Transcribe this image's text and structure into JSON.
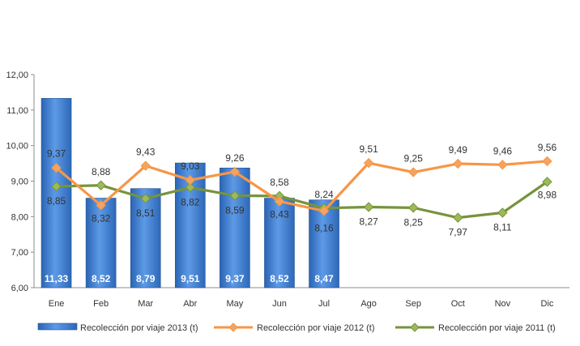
{
  "chart_data": {
    "type": "bar",
    "categories": [
      "Ene",
      "Feb",
      "Mar",
      "Abr",
      "May",
      "Jun",
      "Jul",
      "Ago",
      "Sep",
      "Oct",
      "Nov",
      "Dic"
    ],
    "ylim": [
      6,
      12
    ],
    "yticks": [
      "6,00",
      "7,00",
      "8,00",
      "9,00",
      "10,00",
      "11,00",
      "12,00"
    ],
    "grid": false,
    "legend_position": "bottom",
    "series": [
      {
        "name": "Recolección por viaje 2013 (t)",
        "type": "bar",
        "color": "#3a7dd1",
        "values": [
          11.33,
          8.52,
          8.79,
          9.51,
          9.37,
          8.52,
          8.47,
          null,
          null,
          null,
          null,
          null
        ],
        "labels": [
          "11,33",
          "8,52",
          "8,79",
          "9,51",
          "9,37",
          "8,52",
          "8,47",
          "",
          "",
          "",
          "",
          ""
        ]
      },
      {
        "name": "Recolección por viaje 2012 (t)",
        "type": "line",
        "color": "#f79646",
        "marker_color": "#f4a460",
        "values": [
          9.37,
          8.32,
          9.43,
          9.03,
          9.26,
          8.43,
          8.16,
          9.51,
          9.25,
          9.49,
          9.46,
          9.56
        ],
        "labels": [
          "9,37",
          "8,32",
          "9,43",
          "9,03",
          "9,26",
          "8,43",
          "8,16",
          "9,51",
          "9,25",
          "9,49",
          "9,46",
          "9,56"
        ]
      },
      {
        "name": "Recolección por viaje 2011 (t)",
        "type": "line",
        "color": "#77933c",
        "marker_color": "#9bbb59",
        "values": [
          8.85,
          8.88,
          8.51,
          8.82,
          8.59,
          8.58,
          8.24,
          8.27,
          8.25,
          7.97,
          8.11,
          8.98
        ],
        "labels": [
          "8,85",
          "8,88",
          "8,51",
          "8,82",
          "8,59",
          "8,58",
          "8,24",
          "8,27",
          "8,25",
          "7,97",
          "8,11",
          "8,98"
        ]
      }
    ]
  }
}
